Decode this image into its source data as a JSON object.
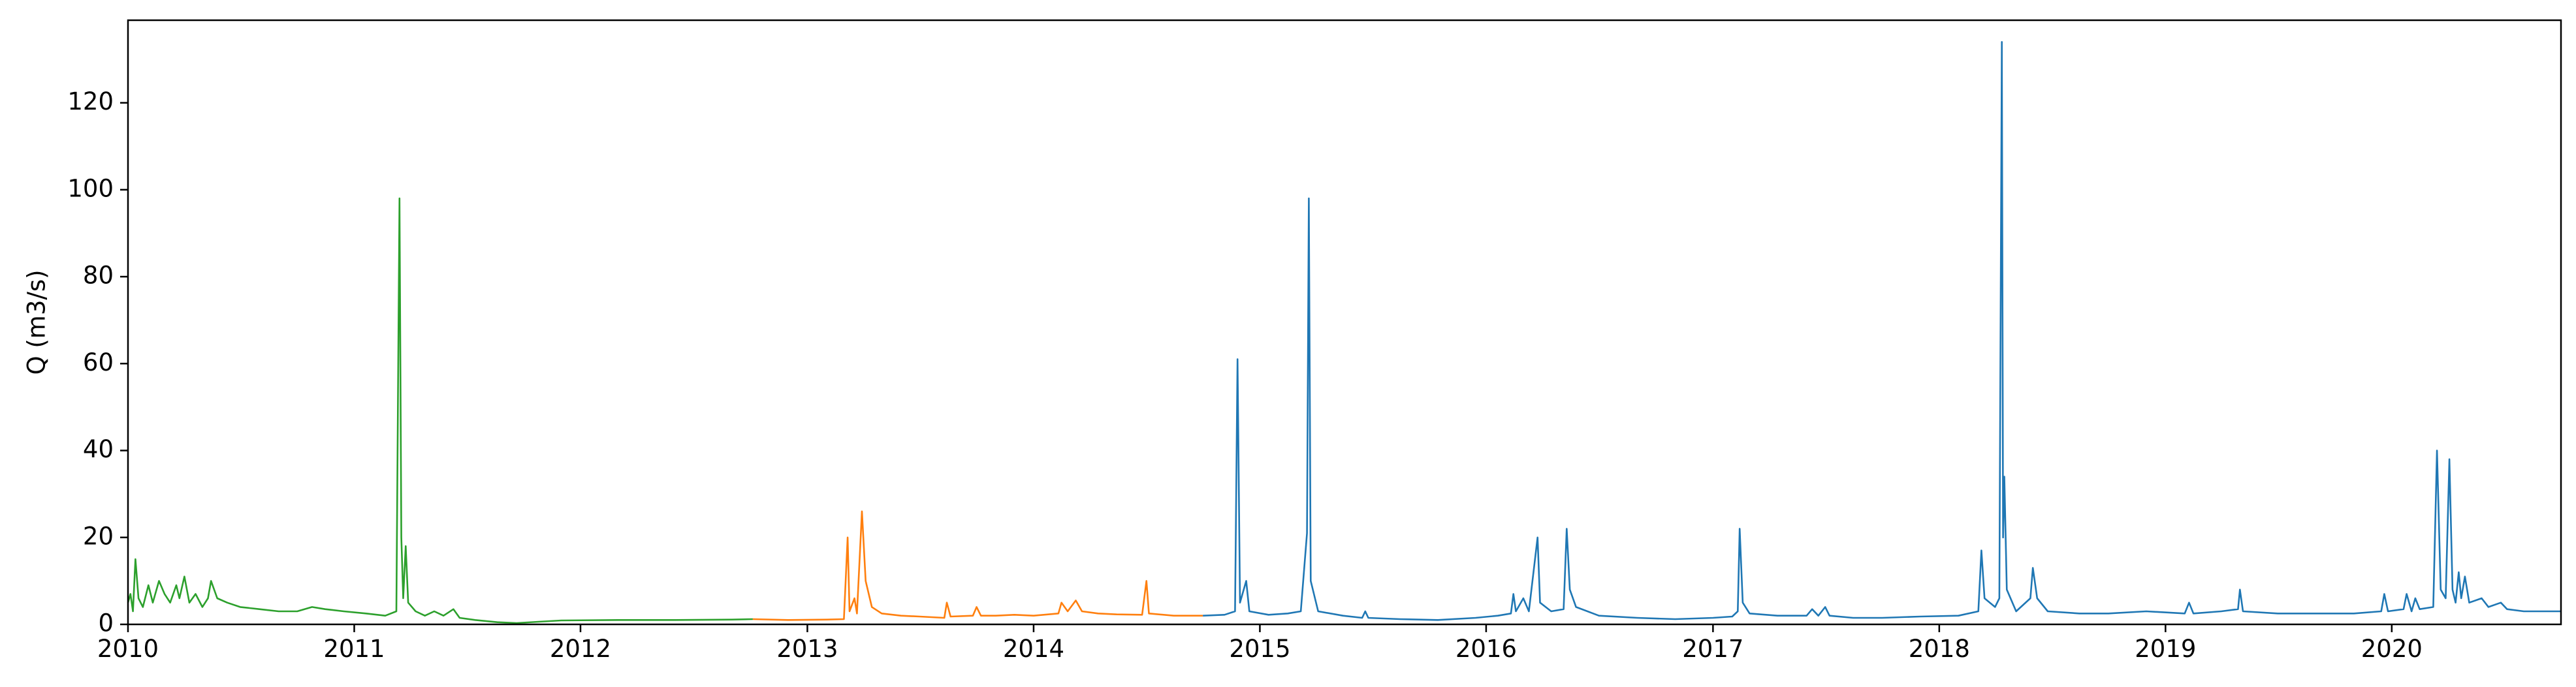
{
  "chart_data": {
    "type": "line",
    "title": "",
    "xlabel": "",
    "ylabel": "Q (m3/s)",
    "xlim": [
      "2010-01-01",
      "2020-09-30"
    ],
    "ylim": [
      0,
      139
    ],
    "grid": false,
    "legend": "none",
    "x_ticks": [
      "2010",
      "2011",
      "2012",
      "2013",
      "2014",
      "2015",
      "2016",
      "2017",
      "2018",
      "2019",
      "2020"
    ],
    "y_ticks": [
      0,
      20,
      40,
      60,
      80,
      100,
      120
    ],
    "y_tick_labels": [
      "0",
      "20",
      "40",
      "60",
      "80",
      "100",
      "120"
    ],
    "series": [
      {
        "color": "#2ca02c",
        "points": [
          [
            "2010-01-01",
            5
          ],
          [
            "2010-01-05",
            7
          ],
          [
            "2010-01-09",
            3
          ],
          [
            "2010-01-13",
            15
          ],
          [
            "2010-01-18",
            6
          ],
          [
            "2010-01-25",
            4
          ],
          [
            "2010-02-03",
            9
          ],
          [
            "2010-02-10",
            5
          ],
          [
            "2010-02-20",
            10
          ],
          [
            "2010-03-01",
            7
          ],
          [
            "2010-03-10",
            5
          ],
          [
            "2010-03-20",
            9
          ],
          [
            "2010-03-25",
            6
          ],
          [
            "2010-04-02",
            11
          ],
          [
            "2010-04-10",
            5
          ],
          [
            "2010-04-20",
            7
          ],
          [
            "2010-05-01",
            4
          ],
          [
            "2010-05-10",
            6
          ],
          [
            "2010-05-15",
            10
          ],
          [
            "2010-05-25",
            6
          ],
          [
            "2010-06-10",
            5
          ],
          [
            "2010-07-01",
            4
          ],
          [
            "2010-08-01",
            3.5
          ],
          [
            "2010-09-01",
            3
          ],
          [
            "2010-10-01",
            3
          ],
          [
            "2010-10-25",
            4
          ],
          [
            "2010-11-15",
            3.5
          ],
          [
            "2010-12-15",
            3
          ],
          [
            "2011-01-20",
            2.5
          ],
          [
            "2011-02-20",
            2
          ],
          [
            "2011-03-10",
            3
          ],
          [
            "2011-03-15",
            98
          ],
          [
            "2011-03-18",
            20
          ],
          [
            "2011-03-21",
            6
          ],
          [
            "2011-03-25",
            18
          ],
          [
            "2011-03-29",
            5
          ],
          [
            "2011-04-10",
            3
          ],
          [
            "2011-04-25",
            2
          ],
          [
            "2011-05-10",
            3
          ],
          [
            "2011-05-25",
            2
          ],
          [
            "2011-06-10",
            3.5
          ],
          [
            "2011-06-20",
            1.5
          ],
          [
            "2011-07-15",
            1
          ],
          [
            "2011-08-20",
            0.5
          ],
          [
            "2011-09-20",
            0.3
          ],
          [
            "2011-10-25",
            0.6
          ],
          [
            "2011-12-01",
            0.9
          ],
          [
            "2012-03-01",
            1
          ],
          [
            "2012-06-01",
            1
          ],
          [
            "2012-09-01",
            1.1
          ],
          [
            "2012-10-05",
            1.2
          ]
        ]
      },
      {
        "color": "#ff7f0e",
        "points": [
          [
            "2012-10-05",
            1.2
          ],
          [
            "2012-12-01",
            1.0
          ],
          [
            "2013-02-01",
            1.1
          ],
          [
            "2013-03-01",
            1.2
          ],
          [
            "2013-03-07",
            20
          ],
          [
            "2013-03-10",
            3
          ],
          [
            "2013-03-18",
            6
          ],
          [
            "2013-03-22",
            2.5
          ],
          [
            "2013-03-30",
            26
          ],
          [
            "2013-04-05",
            10
          ],
          [
            "2013-04-15",
            4
          ],
          [
            "2013-05-01",
            2.5
          ],
          [
            "2013-06-01",
            2
          ],
          [
            "2013-07-01",
            1.8
          ],
          [
            "2013-08-10",
            1.5
          ],
          [
            "2013-08-14",
            5
          ],
          [
            "2013-08-20",
            1.8
          ],
          [
            "2013-09-25",
            2
          ],
          [
            "2013-10-01",
            4
          ],
          [
            "2013-10-08",
            2
          ],
          [
            "2013-11-01",
            2
          ],
          [
            "2013-12-01",
            2.2
          ],
          [
            "2014-01-01",
            2
          ],
          [
            "2014-02-10",
            2.5
          ],
          [
            "2014-02-15",
            5
          ],
          [
            "2014-02-25",
            3
          ],
          [
            "2014-03-10",
            5.5
          ],
          [
            "2014-03-20",
            3
          ],
          [
            "2014-04-15",
            2.5
          ],
          [
            "2014-05-15",
            2.3
          ],
          [
            "2014-06-25",
            2.2
          ],
          [
            "2014-07-02",
            10
          ],
          [
            "2014-07-06",
            2.5
          ],
          [
            "2014-08-15",
            2
          ],
          [
            "2014-10-01",
            2
          ]
        ]
      },
      {
        "color": "#1f77b4",
        "points": [
          [
            "2014-10-01",
            2
          ],
          [
            "2014-11-05",
            2.2
          ],
          [
            "2014-11-22",
            3
          ],
          [
            "2014-11-26",
            61
          ],
          [
            "2014-11-30",
            5
          ],
          [
            "2014-12-10",
            10
          ],
          [
            "2014-12-15",
            3
          ],
          [
            "2015-01-15",
            2.2
          ],
          [
            "2015-02-15",
            2.5
          ],
          [
            "2015-03-08",
            3
          ],
          [
            "2015-03-18",
            21
          ],
          [
            "2015-03-21",
            98
          ],
          [
            "2015-03-24",
            10
          ],
          [
            "2015-04-05",
            3
          ],
          [
            "2015-05-15",
            2
          ],
          [
            "2015-06-15",
            1.5
          ],
          [
            "2015-06-20",
            3
          ],
          [
            "2015-06-25",
            1.5
          ],
          [
            "2015-08-15",
            1.2
          ],
          [
            "2015-10-15",
            1
          ],
          [
            "2015-12-15",
            1.5
          ],
          [
            "2016-01-20",
            2
          ],
          [
            "2016-02-10",
            2.5
          ],
          [
            "2016-02-14",
            7
          ],
          [
            "2016-02-18",
            3
          ],
          [
            "2016-03-01",
            6
          ],
          [
            "2016-03-10",
            3
          ],
          [
            "2016-03-24",
            20
          ],
          [
            "2016-03-28",
            5
          ],
          [
            "2016-04-15",
            3
          ],
          [
            "2016-05-05",
            3.5
          ],
          [
            "2016-05-10",
            22
          ],
          [
            "2016-05-15",
            8
          ],
          [
            "2016-05-25",
            4
          ],
          [
            "2016-07-01",
            2
          ],
          [
            "2016-09-01",
            1.5
          ],
          [
            "2016-11-01",
            1.2
          ],
          [
            "2017-01-01",
            1.5
          ],
          [
            "2017-02-01",
            1.8
          ],
          [
            "2017-02-10",
            3
          ],
          [
            "2017-02-13",
            22
          ],
          [
            "2017-02-18",
            5
          ],
          [
            "2017-03-01",
            2.5
          ],
          [
            "2017-04-15",
            2
          ],
          [
            "2017-06-01",
            2
          ],
          [
            "2017-06-10",
            3.5
          ],
          [
            "2017-06-20",
            2
          ],
          [
            "2017-07-01",
            4
          ],
          [
            "2017-07-08",
            2
          ],
          [
            "2017-08-15",
            1.5
          ],
          [
            "2017-10-01",
            1.5
          ],
          [
            "2017-12-01",
            1.8
          ],
          [
            "2018-02-01",
            2
          ],
          [
            "2018-03-05",
            3
          ],
          [
            "2018-03-10",
            17
          ],
          [
            "2018-03-15",
            6
          ],
          [
            "2018-04-01",
            4
          ],
          [
            "2018-04-08",
            6
          ],
          [
            "2018-04-12",
            134
          ],
          [
            "2018-04-14",
            20
          ],
          [
            "2018-04-16",
            34
          ],
          [
            "2018-04-20",
            8
          ],
          [
            "2018-05-05",
            3
          ],
          [
            "2018-05-28",
            6
          ],
          [
            "2018-06-01",
            13
          ],
          [
            "2018-06-08",
            6
          ],
          [
            "2018-06-25",
            3
          ],
          [
            "2018-08-15",
            2.5
          ],
          [
            "2018-10-01",
            2.5
          ],
          [
            "2018-12-01",
            3
          ],
          [
            "2019-02-01",
            2.5
          ],
          [
            "2019-02-08",
            5
          ],
          [
            "2019-02-15",
            2.5
          ],
          [
            "2019-04-01",
            3
          ],
          [
            "2019-04-28",
            3.5
          ],
          [
            "2019-05-01",
            8
          ],
          [
            "2019-05-06",
            3
          ],
          [
            "2019-07-01",
            2.5
          ],
          [
            "2019-09-01",
            2.5
          ],
          [
            "2019-11-01",
            2.5
          ],
          [
            "2019-12-15",
            3
          ],
          [
            "2019-12-20",
            7
          ],
          [
            "2019-12-26",
            3
          ],
          [
            "2020-01-20",
            3.5
          ],
          [
            "2020-01-25",
            7
          ],
          [
            "2020-02-02",
            3
          ],
          [
            "2020-02-08",
            6
          ],
          [
            "2020-02-15",
            3.5
          ],
          [
            "2020-03-08",
            4
          ],
          [
            "2020-03-14",
            40
          ],
          [
            "2020-03-20",
            8
          ],
          [
            "2020-03-28",
            6
          ],
          [
            "2020-04-03",
            38
          ],
          [
            "2020-04-08",
            8
          ],
          [
            "2020-04-13",
            5
          ],
          [
            "2020-04-18",
            12
          ],
          [
            "2020-04-22",
            6
          ],
          [
            "2020-04-28",
            11
          ],
          [
            "2020-05-05",
            5
          ],
          [
            "2020-05-25",
            6
          ],
          [
            "2020-06-05",
            4
          ],
          [
            "2020-06-25",
            5
          ],
          [
            "2020-07-05",
            3.5
          ],
          [
            "2020-08-01",
            3
          ],
          [
            "2020-09-30",
            3
          ]
        ]
      }
    ]
  }
}
